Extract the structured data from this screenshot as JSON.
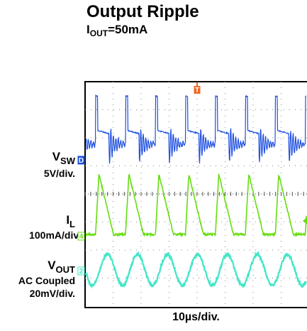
{
  "chart_data": {
    "type": "line",
    "title": "Output Ripple",
    "subtitle": {
      "main": "I",
      "sub": "OUT",
      "rest": "=50mA"
    },
    "xlabel": "10µs/div.",
    "grid": true,
    "colors": {
      "vsw": "#2050e0",
      "il": "#66dd11",
      "vout": "#44e6c8",
      "trigger": "#ee6622"
    },
    "channels": [
      {
        "id": "vsw",
        "name_main": "V",
        "name_sub": "SW",
        "scale": "5V/div.",
        "marker": "D"
      },
      {
        "id": "il",
        "name_main": "I",
        "name_sub": "L",
        "scale": "100mA/div.",
        "marker": "4"
      },
      {
        "id": "vout",
        "name_main": "V",
        "name_sub": "OUT",
        "extra": "AC Coupled",
        "scale": "20mV/div.",
        "marker": "2"
      }
    ],
    "trigger_marker": "T",
    "period_div": 1.07,
    "duty": 0.45
  }
}
